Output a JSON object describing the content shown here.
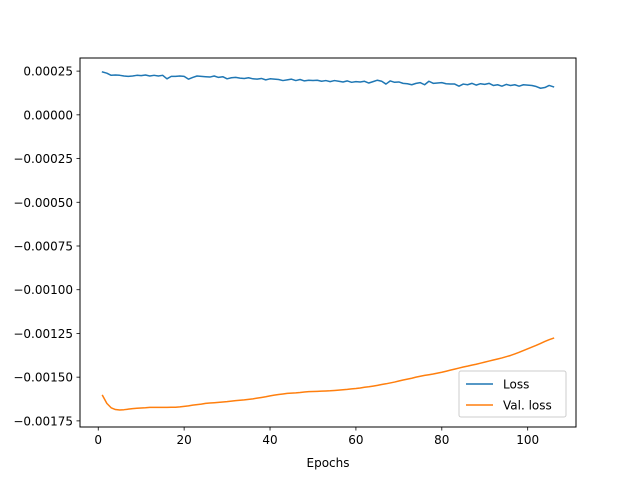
{
  "chart_data": {
    "type": "line",
    "title": "",
    "xlabel": "Epochs",
    "ylabel": "",
    "xlim": [
      -4.25,
      111.25
    ],
    "ylim": [
      -0.001785,
      0.000325
    ],
    "xticks": [
      0,
      20,
      40,
      60,
      80,
      100
    ],
    "xtick_labels": [
      "0",
      "20",
      "40",
      "60",
      "80",
      "100"
    ],
    "yticks": [
      0.00025,
      0.0,
      -0.00025,
      -0.0005,
      -0.00075,
      -0.001,
      -0.00125,
      -0.0015,
      -0.00175
    ],
    "ytick_labels": [
      "0.00025",
      "0.00000",
      "−0.00025",
      "−0.00050",
      "−0.00075",
      "−0.00100",
      "−0.00125",
      "−0.00150",
      "−0.00175"
    ],
    "grid": false,
    "legend": {
      "placement": "lower-right"
    },
    "x": [
      1,
      2,
      3,
      4,
      5,
      6,
      7,
      8,
      9,
      10,
      11,
      12,
      13,
      14,
      15,
      16,
      17,
      18,
      19,
      20,
      21,
      22,
      23,
      24,
      25,
      26,
      27,
      28,
      29,
      30,
      31,
      32,
      33,
      34,
      35,
      36,
      37,
      38,
      39,
      40,
      41,
      42,
      43,
      44,
      45,
      46,
      47,
      48,
      49,
      50,
      51,
      52,
      53,
      54,
      55,
      56,
      57,
      58,
      59,
      60,
      61,
      62,
      63,
      64,
      65,
      66,
      67,
      68,
      69,
      70,
      71,
      72,
      73,
      74,
      75,
      76,
      77,
      78,
      79,
      80,
      81,
      82,
      83,
      84,
      85,
      86,
      87,
      88,
      89,
      90,
      91,
      92,
      93,
      94,
      95,
      96,
      97,
      98,
      99,
      100,
      101,
      102,
      103,
      104,
      105,
      106
    ],
    "series": [
      {
        "name": "Loss",
        "color": "#1f77b4",
        "values": [
          0.000245,
          0.000238,
          0.000226,
          0.000228,
          0.000226,
          0.000222,
          0.00022,
          0.000222,
          0.000226,
          0.000224,
          0.000228,
          0.000222,
          0.000226,
          0.000222,
          0.000226,
          0.000206,
          0.00022,
          0.00022,
          0.000222,
          0.00022,
          0.000204,
          0.000214,
          0.000222,
          0.00022,
          0.000218,
          0.000216,
          0.000222,
          0.000214,
          0.000218,
          0.000206,
          0.000212,
          0.000214,
          0.00021,
          0.000208,
          0.000212,
          0.000206,
          0.000204,
          0.000208,
          0.0002,
          0.000206,
          0.000204,
          0.000202,
          0.000196,
          0.0002,
          0.000204,
          0.000196,
          0.000202,
          0.000194,
          0.000198,
          0.000196,
          0.000198,
          0.000192,
          0.000196,
          0.00019,
          0.000196,
          0.000192,
          0.000188,
          0.000194,
          0.000186,
          0.00019,
          0.000188,
          0.000192,
          0.000182,
          0.00019,
          0.000198,
          0.000192,
          0.000176,
          0.000194,
          0.000186,
          0.000188,
          0.00018,
          0.000178,
          0.000172,
          0.00018,
          0.000184,
          0.000172,
          0.000192,
          0.00018,
          0.000182,
          0.000184,
          0.000178,
          0.000176,
          0.000176,
          0.000164,
          0.000176,
          0.000172,
          0.00018,
          0.00017,
          0.000178,
          0.000174,
          0.00018,
          0.000168,
          0.000172,
          0.000164,
          0.000174,
          0.000168,
          0.000172,
          0.000164,
          0.000172,
          0.00017,
          0.000168,
          0.000162,
          0.000152,
          0.000156,
          0.000168,
          0.00016
        ]
      },
      {
        "name": "Val. loss",
        "color": "#ff7f0e",
        "values": [
          -0.001605,
          -0.00165,
          -0.001675,
          -0.001685,
          -0.001688,
          -0.001686,
          -0.001683,
          -0.00168,
          -0.001678,
          -0.001676,
          -0.001675,
          -0.001673,
          -0.001673,
          -0.001673,
          -0.001673,
          -0.001673,
          -0.001672,
          -0.001672,
          -0.00167,
          -0.001667,
          -0.001664,
          -0.00166,
          -0.001657,
          -0.001654,
          -0.00165,
          -0.001648,
          -0.001646,
          -0.001644,
          -0.001642,
          -0.00164,
          -0.001637,
          -0.001634,
          -0.001632,
          -0.00163,
          -0.001627,
          -0.001624,
          -0.00162,
          -0.001616,
          -0.001612,
          -0.001607,
          -0.001603,
          -0.001599,
          -0.001596,
          -0.001593,
          -0.001591,
          -0.00159,
          -0.001588,
          -0.001585,
          -0.001583,
          -0.001582,
          -0.001581,
          -0.00158,
          -0.001579,
          -0.001578,
          -0.001576,
          -0.001574,
          -0.001572,
          -0.00157,
          -0.001567,
          -0.001565,
          -0.001562,
          -0.001558,
          -0.001555,
          -0.001551,
          -0.001547,
          -0.001542,
          -0.001538,
          -0.001533,
          -0.001528,
          -0.001522,
          -0.001516,
          -0.001511,
          -0.001506,
          -0.0015,
          -0.001495,
          -0.00149,
          -0.001486,
          -0.001482,
          -0.001477,
          -0.001472,
          -0.001466,
          -0.00146,
          -0.001454,
          -0.001448,
          -0.001442,
          -0.001437,
          -0.001431,
          -0.001426,
          -0.00142,
          -0.001414,
          -0.001408,
          -0.001402,
          -0.001396,
          -0.00139,
          -0.001383,
          -0.001376,
          -0.001367,
          -0.001358,
          -0.001348,
          -0.001338,
          -0.001328,
          -0.001318,
          -0.001307,
          -0.001296,
          -0.001286,
          -0.001277
        ]
      }
    ]
  }
}
